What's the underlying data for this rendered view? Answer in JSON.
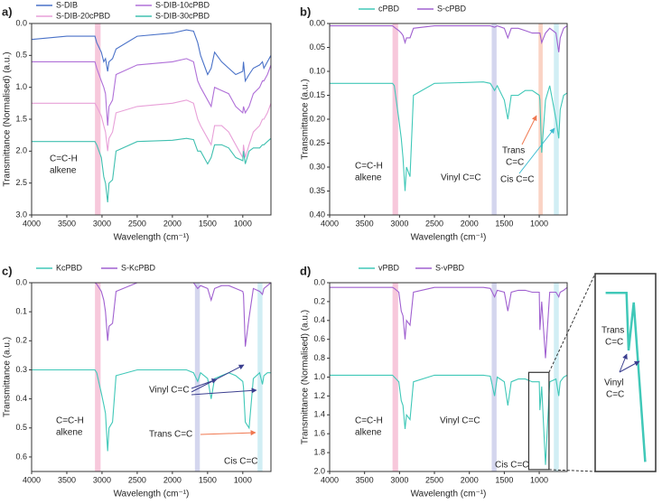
{
  "chart_data": [
    {
      "type": "line",
      "label": "a)",
      "x_label": "Wavelength (cm⁻¹)",
      "y_label": "Transmittance (Normalised) (a.u.)",
      "x": [
        4000,
        3500,
        3100,
        3075,
        3010,
        2975,
        2950,
        2920,
        2900,
        2850,
        2800,
        2500,
        2000,
        1800,
        1700,
        1640,
        1600,
        1500,
        1450,
        1400,
        1300,
        1200,
        1100,
        1000,
        990,
        965,
        910,
        850,
        760,
        720,
        700,
        650,
        600
      ],
      "series": [
        {
          "name": "S-DIB",
          "color": "#4a72c8",
          "values": [
            0.25,
            0.2,
            0.2,
            0.3,
            0.45,
            0.6,
            0.55,
            0.75,
            0.6,
            0.55,
            0.4,
            0.2,
            0.15,
            0.1,
            0.12,
            0.3,
            0.5,
            0.8,
            0.7,
            0.45,
            0.6,
            0.7,
            0.8,
            0.75,
            0.6,
            0.9,
            0.8,
            0.7,
            0.65,
            0.6,
            0.7,
            0.6,
            0.5
          ]
        },
        {
          "name": "S-DIB-10cPBD",
          "color": "#b070d8",
          "values": [
            0.6,
            0.6,
            0.6,
            0.7,
            0.9,
            1.0,
            1.1,
            1.6,
            1.3,
            1.2,
            0.8,
            0.65,
            0.6,
            0.55,
            0.6,
            0.9,
            1.0,
            1.2,
            1.3,
            1.0,
            1.05,
            1.1,
            1.3,
            1.4,
            1.3,
            1.4,
            1.3,
            1.1,
            1.0,
            0.9,
            0.9,
            0.8,
            0.65
          ]
        },
        {
          "name": "S-DIB-20cPBD",
          "color": "#e8a0d8",
          "values": [
            1.25,
            1.25,
            1.25,
            1.3,
            1.45,
            1.6,
            1.7,
            2.0,
            1.8,
            1.7,
            1.4,
            1.3,
            1.25,
            1.2,
            1.25,
            1.5,
            1.6,
            1.8,
            1.9,
            1.6,
            1.6,
            1.7,
            1.9,
            2.1,
            1.9,
            2.1,
            1.9,
            1.7,
            1.6,
            1.5,
            1.5,
            1.4,
            1.25
          ]
        },
        {
          "name": "S-DIB-30cPBD",
          "color": "#40c0b0",
          "values": [
            1.85,
            1.85,
            1.85,
            1.9,
            2.1,
            2.4,
            2.5,
            2.8,
            2.5,
            2.45,
            2.0,
            1.85,
            1.83,
            1.8,
            1.82,
            2.0,
            2.0,
            2.2,
            2.1,
            1.9,
            1.9,
            1.95,
            2.1,
            2.15,
            2.0,
            2.2,
            2.0,
            1.95,
            1.95,
            1.9,
            1.9,
            1.85,
            1.8
          ]
        }
      ],
      "xlim": [
        4000,
        600
      ],
      "xticks": [
        4000,
        3500,
        3000,
        2500,
        2000,
        1500,
        1000
      ],
      "ylim": [
        3.0,
        0.0
      ],
      "yticks": [
        {
          "value": 0,
          "label": "0.0"
        },
        {
          "value": 0.5,
          "label": "0.5"
        },
        {
          "value": 1,
          "label": "1.0"
        },
        {
          "value": 1.5,
          "label": "1.5"
        },
        {
          "value": 2,
          "label": "2.0"
        },
        {
          "value": 2.5,
          "label": "2.5"
        },
        {
          "value": 3,
          "label": "3.0"
        }
      ],
      "bands": [
        {
          "from": 3100,
          "to": 3020,
          "color": "#f4b6cf"
        }
      ],
      "annotations": [
        {
          "lines": [
            "C=C-H",
            "alkene"
          ],
          "color": "#e0609a"
        }
      ]
    },
    {
      "type": "line",
      "label": "b)",
      "x_label": "Wavelength (cm⁻¹)",
      "y_label": "Transmittance (a.u.)",
      "x": [
        4000,
        3500,
        3100,
        3075,
        3010,
        2975,
        2950,
        2920,
        2900,
        2850,
        2800,
        2500,
        2000,
        1800,
        1700,
        1640,
        1600,
        1500,
        1450,
        1400,
        1300,
        1200,
        1100,
        1000,
        990,
        965,
        910,
        850,
        760,
        720,
        700,
        650,
        600
      ],
      "series": [
        {
          "name": "cPBD",
          "color": "#40c8b8",
          "values": [
            0.125,
            0.125,
            0.125,
            0.13,
            0.2,
            0.24,
            0.28,
            0.35,
            0.3,
            0.32,
            0.15,
            0.125,
            0.123,
            0.122,
            0.125,
            0.14,
            0.13,
            0.16,
            0.2,
            0.15,
            0.15,
            0.14,
            0.14,
            0.15,
            0.16,
            0.27,
            0.16,
            0.13,
            0.2,
            0.24,
            0.18,
            0.15,
            0.145
          ]
        },
        {
          "name": "S-cPBD",
          "color": "#a060d0",
          "values": [
            0.005,
            0.005,
            0.005,
            0.008,
            0.015,
            0.02,
            0.025,
            0.04,
            0.03,
            0.03,
            0.01,
            0.005,
            0.005,
            0.005,
            0.005,
            0.008,
            0.005,
            0.01,
            0.03,
            0.01,
            0.01,
            0.015,
            0.02,
            0.02,
            0.02,
            0.04,
            0.02,
            0.01,
            0.02,
            0.06,
            0.03,
            0.01,
            0.005
          ]
        }
      ],
      "xlim": [
        4000,
        600
      ],
      "xticks": [
        4000,
        3500,
        3000,
        2500,
        2000,
        1500,
        1000
      ],
      "ylim": [
        0.4,
        0.0
      ],
      "yticks": [
        {
          "value": 0,
          "label": "0.00"
        },
        {
          "value": 0.05,
          "label": "0.05"
        },
        {
          "value": 0.1,
          "label": "0.10"
        },
        {
          "value": 0.15,
          "label": "0.15"
        },
        {
          "value": 0.2,
          "label": "0.20"
        },
        {
          "value": 0.25,
          "label": "0.25"
        },
        {
          "value": 0.3,
          "label": "0.30"
        },
        {
          "value": 0.35,
          "label": "0.35"
        },
        {
          "value": 0.4,
          "label": "0.40"
        }
      ],
      "bands": [
        {
          "from": 3100,
          "to": 3020,
          "color": "#f4b6cf"
        },
        {
          "from": 1680,
          "to": 1610,
          "color": "#c5c8e8"
        },
        {
          "from": 1010,
          "to": 950,
          "color": "#f8c4b0"
        },
        {
          "from": 790,
          "to": 720,
          "color": "#c2e8f0"
        }
      ],
      "annotations": [
        {
          "lines": [
            "C=C-H",
            "alkene"
          ],
          "color": "#e0609a"
        },
        {
          "lines": [
            "Vinyl C=C"
          ],
          "color": "#3b3f8f"
        },
        {
          "lines": [
            "Trans",
            "C=C"
          ],
          "color": "#f07850"
        },
        {
          "lines": [
            "Cis C=C"
          ],
          "color": "#3bbcd0"
        }
      ]
    },
    {
      "type": "line",
      "label": "c)",
      "x_label": "Wavelength (cm⁻¹)",
      "y_label": "Transmittance (a.u.)",
      "x": [
        4000,
        3500,
        3100,
        3075,
        3010,
        2975,
        2950,
        2920,
        2900,
        2850,
        2800,
        2500,
        2000,
        1800,
        1700,
        1640,
        1600,
        1500,
        1450,
        1400,
        1300,
        1200,
        1100,
        1000,
        990,
        965,
        910,
        850,
        760,
        720,
        700,
        650,
        600
      ],
      "series": [
        {
          "name": "KcPBD",
          "color": "#40c8b8",
          "values": [
            0.3,
            0.3,
            0.3,
            0.31,
            0.38,
            0.42,
            0.45,
            0.58,
            0.5,
            0.48,
            0.32,
            0.3,
            0.3,
            0.3,
            0.31,
            0.34,
            0.31,
            0.33,
            0.4,
            0.33,
            0.32,
            0.31,
            0.32,
            0.34,
            0.36,
            0.48,
            0.5,
            0.33,
            0.31,
            0.35,
            0.32,
            0.31,
            0.31
          ]
        },
        {
          "name": "S-KcPBD",
          "color": "#a060d0",
          "values": [
            0,
            0,
            0,
            0.005,
            0.03,
            0.06,
            0.1,
            0.2,
            0.15,
            0.14,
            0.03,
            0,
            0,
            0,
            0,
            0.02,
            0.01,
            0.02,
            0.06,
            0.02,
            0.01,
            0.01,
            0.02,
            0.03,
            0.04,
            0.22,
            0.12,
            0.02,
            0.03,
            0.04,
            0.02,
            0.01,
            0
          ]
        }
      ],
      "xlim": [
        4000,
        600
      ],
      "xticks": [
        4000,
        3500,
        3000,
        2500,
        2000,
        1500,
        1000
      ],
      "ylim": [
        0.65,
        0.0
      ],
      "yticks": [
        {
          "value": 0,
          "label": "0.0"
        },
        {
          "value": 0.1,
          "label": "0.1"
        },
        {
          "value": 0.2,
          "label": "0.2"
        },
        {
          "value": 0.3,
          "label": "0.3"
        },
        {
          "value": 0.4,
          "label": "0.4"
        },
        {
          "value": 0.5,
          "label": "0.5"
        },
        {
          "value": 0.6,
          "label": "0.6"
        }
      ],
      "bands": [
        {
          "from": 3100,
          "to": 3020,
          "color": "#f4b6cf"
        },
        {
          "from": 1680,
          "to": 1610,
          "color": "#c5c8e8"
        },
        {
          "from": 790,
          "to": 720,
          "color": "#c2e8f0"
        }
      ],
      "annotations": [
        {
          "lines": [
            "C=C-H",
            "alkene"
          ],
          "color": "#e0609a"
        },
        {
          "lines": [
            "Vinyl C=C"
          ],
          "color": "#3b3f8f"
        },
        {
          "lines": [
            "Trans C=C"
          ],
          "color": "#f07850"
        },
        {
          "lines": [
            "Cis C=C"
          ],
          "color": "#3bbcd0"
        }
      ]
    },
    {
      "type": "line",
      "label": "d)",
      "x_label": "Wavelength (cm⁻¹)",
      "y_label": "Transmittance (Normalised) (a.u.)",
      "x": [
        4000,
        3500,
        3100,
        3075,
        3010,
        2975,
        2950,
        2920,
        2900,
        2850,
        2800,
        2500,
        2000,
        1800,
        1700,
        1640,
        1600,
        1500,
        1450,
        1400,
        1300,
        1200,
        1100,
        1000,
        990,
        965,
        910,
        850,
        760,
        720,
        700,
        650,
        600
      ],
      "series": [
        {
          "name": "vPBD",
          "color": "#40c8b8",
          "values": [
            0.98,
            0.98,
            0.98,
            1.0,
            1.05,
            1.25,
            1.3,
            1.55,
            1.4,
            1.45,
            1.05,
            0.98,
            0.98,
            0.98,
            0.99,
            1.2,
            1.0,
            1.05,
            1.3,
            1.05,
            1.02,
            1.02,
            1.05,
            1.05,
            1.35,
            1.1,
            1.93,
            1.05,
            1.02,
            1.2,
            1.05,
            1.0,
            0.98
          ]
        },
        {
          "name": "S-vPBD",
          "color": "#a060d0",
          "values": [
            0.05,
            0.05,
            0.05,
            0.06,
            0.1,
            0.3,
            0.35,
            0.6,
            0.4,
            0.45,
            0.1,
            0.05,
            0.05,
            0.05,
            0.06,
            0.15,
            0.08,
            0.1,
            0.3,
            0.1,
            0.08,
            0.08,
            0.1,
            0.1,
            0.5,
            0.2,
            0.8,
            0.1,
            0.1,
            0.15,
            0.1,
            0.08,
            0.05
          ]
        }
      ],
      "xlim": [
        4000,
        600
      ],
      "xticks": [
        4000,
        3500,
        3000,
        2500,
        2000,
        1500,
        1000
      ],
      "ylim": [
        2.0,
        0.0
      ],
      "yticks": [
        {
          "value": 0,
          "label": "0.0"
        },
        {
          "value": 0.2,
          "label": "0.2"
        },
        {
          "value": 0.4,
          "label": "0.4"
        },
        {
          "value": 0.6,
          "label": "0.6"
        },
        {
          "value": 0.8,
          "label": "0.8"
        },
        {
          "value": 1,
          "label": "1.0"
        },
        {
          "value": 1.2,
          "label": "1.2"
        },
        {
          "value": 1.4,
          "label": "1.4"
        },
        {
          "value": 1.6,
          "label": "1.6"
        },
        {
          "value": 1.8,
          "label": "1.8"
        },
        {
          "value": 2,
          "label": "2.0"
        }
      ],
      "bands": [
        {
          "from": 3100,
          "to": 3020,
          "color": "#f4b6cf"
        },
        {
          "from": 1680,
          "to": 1610,
          "color": "#c5c8e8"
        },
        {
          "from": 790,
          "to": 720,
          "color": "#c2e8f0"
        }
      ],
      "annotations": [
        {
          "lines": [
            "C=C-H",
            "alkene"
          ],
          "color": "#e0609a"
        },
        {
          "lines": [
            "Vinyl C=C"
          ],
          "color": "#3b3f8f"
        },
        {
          "lines": [
            "Cis C=C"
          ],
          "color": "#3bbcd0"
        }
      ],
      "inset": {
        "annotations": [
          {
            "lines": [
              "Trans",
              "C=C"
            ],
            "color": "#f07850"
          },
          {
            "lines": [
              "Vinyl",
              "C=C"
            ],
            "color": "#3b3f8f"
          }
        ]
      }
    }
  ]
}
